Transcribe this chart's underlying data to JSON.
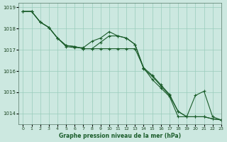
{
  "title": "Graphe pression niveau de la mer (hPa)",
  "background_color": "#cce8e0",
  "grid_color": "#99ccbb",
  "line_color": "#1a5c2a",
  "xlim": [
    -0.5,
    23
  ],
  "ylim": [
    1013.5,
    1019.2
  ],
  "yticks": [
    1014,
    1015,
    1016,
    1017,
    1018,
    1019
  ],
  "xtick_labels": [
    "0",
    "1",
    "2",
    "3",
    "4",
    "5",
    "6",
    "7",
    "8",
    "9",
    "10",
    "11",
    "12",
    "13",
    "14",
    "15",
    "16",
    "17",
    "18",
    "19",
    "20",
    "21",
    "22",
    "23"
  ],
  "xticks": [
    0,
    1,
    2,
    3,
    4,
    5,
    6,
    7,
    8,
    9,
    10,
    11,
    12,
    13,
    14,
    15,
    16,
    17,
    18,
    19,
    20,
    21,
    22,
    23
  ],
  "series1": [
    1018.8,
    1018.8,
    1018.3,
    1018.05,
    1017.55,
    1017.2,
    1017.15,
    1017.05,
    1017.05,
    1017.05,
    1017.05,
    1017.05,
    1017.05,
    1017.05,
    1016.15,
    1015.8,
    1015.35,
    1014.9,
    1014.1,
    1013.85,
    1013.85,
    1013.85,
    1013.75,
    1013.7
  ],
  "series2": [
    1018.8,
    1018.8,
    1018.3,
    1018.05,
    1017.55,
    1017.15,
    1017.1,
    1017.1,
    1017.4,
    1017.55,
    1017.85,
    1017.65,
    1017.55,
    1017.25,
    1016.15,
    1015.6,
    1015.2,
    1014.8,
    1013.85,
    1013.85,
    1013.85,
    1013.85,
    1013.75,
    1013.7
  ],
  "series3": [
    1018.8,
    1018.8,
    1018.3,
    1018.05,
    1017.55,
    1017.2,
    1017.15,
    1017.05,
    1017.05,
    1017.35,
    1017.65,
    1017.65,
    1017.55,
    1017.25,
    1016.1,
    1015.75,
    1015.3,
    1014.85,
    1014.1,
    1013.85,
    1014.85,
    1015.05,
    1013.85,
    1013.7
  ]
}
